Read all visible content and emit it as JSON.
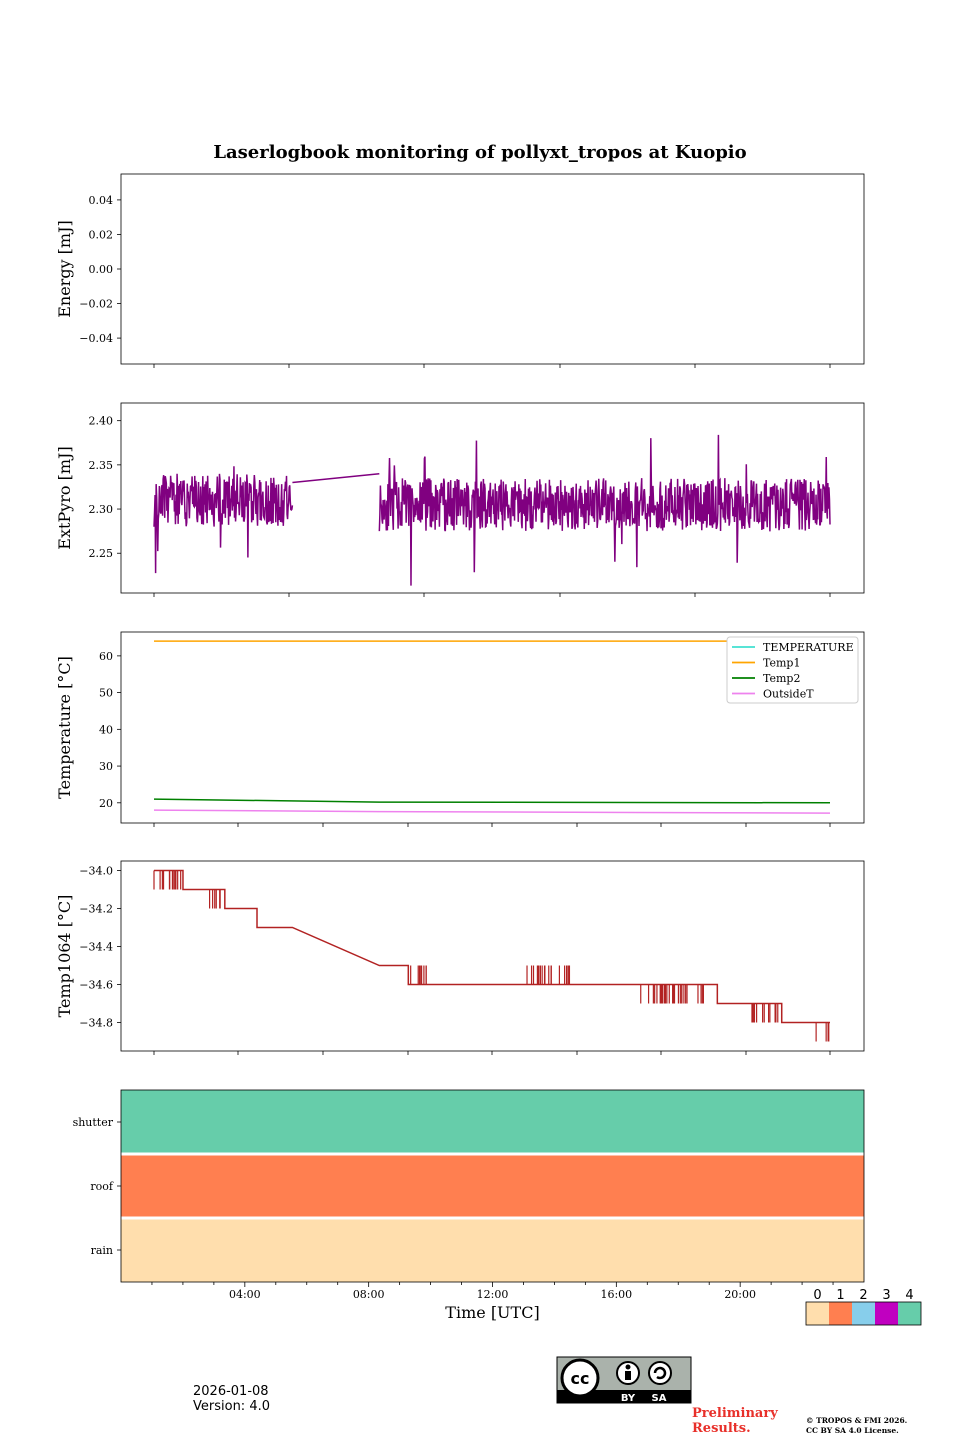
{
  "title": "Laserlogbook monitoring of pollyxt_tropos at Kuopio",
  "footer": {
    "date": "2026-01-08",
    "version": "Version: 4.0",
    "prelim_line1": "Preliminary",
    "prelim_line2": "Results.",
    "copyright_line1": "© TROPOS & FMI 2026.",
    "copyright_line2": "CC BY SA 4.0 License.",
    "cc_by": "BY",
    "cc_sa": "SA",
    "cc_main": "cc"
  },
  "chart_data": [
    {
      "id": "energy",
      "type": "line",
      "ylabel": "Energy [mJ]",
      "ylim": [
        -0.055,
        0.055
      ],
      "yticks": [
        0.04,
        0.02,
        0.0,
        -0.02,
        -0.04
      ],
      "ytick_labels": [
        "0.04",
        "0.02",
        "0.00",
        "−0.02",
        "−0.04"
      ],
      "series": []
    },
    {
      "id": "extpyro",
      "type": "line",
      "ylabel": "ExtPyro [mJ]",
      "ylim": [
        2.205,
        2.42
      ],
      "yticks": [
        2.4,
        2.35,
        2.3,
        2.25
      ],
      "ytick_labels": [
        "2.40",
        "2.35",
        "2.30",
        "2.25"
      ],
      "series": [
        {
          "name": "ExtPyro",
          "color": "#800080",
          "segments": [
            {
              "t_start": 1.0,
              "t_end": 5.3,
              "mean": 2.31,
              "amp": 0.03,
              "seed": 3
            },
            {
              "t_start": 5.3,
              "t_end": 8.0,
              "points": [
                [
                  5.3,
                  2.33
                ],
                [
                  8.0,
                  2.34
                ]
              ]
            },
            {
              "t_start": 8.0,
              "t_end": 22.0,
              "mean": 2.305,
              "amp": 0.03,
              "seed": 11
            }
          ]
        }
      ]
    },
    {
      "id": "temperature",
      "type": "line",
      "ylabel": "Temperature [°C]",
      "ylim": [
        14.5,
        66.5
      ],
      "yticks": [
        60,
        50,
        40,
        30,
        20
      ],
      "ytick_labels": [
        "60",
        "50",
        "40",
        "30",
        "20"
      ],
      "legend": [
        "TEMPERATURE",
        "Temp1",
        "Temp2",
        "OutsideT"
      ],
      "legend_colors": [
        "#40e0d0",
        "#ffa500",
        "#008000",
        "#ee82ee"
      ],
      "legend_position": "top-right",
      "series": [
        {
          "name": "Temp1",
          "color": "#ffa500",
          "points": [
            [
              1.0,
              64.0
            ],
            [
              22.0,
              64.0
            ]
          ]
        },
        {
          "name": "Temp2",
          "color": "#008000",
          "points": [
            [
              1.0,
              21.0
            ],
            [
              8.0,
              20.2
            ],
            [
              22.0,
              20.0
            ]
          ]
        },
        {
          "name": "OutsideT",
          "color": "#ee82ee",
          "points": [
            [
              1.0,
              18.0
            ],
            [
              8.0,
              17.6
            ],
            [
              22.0,
              17.2
            ]
          ]
        }
      ]
    },
    {
      "id": "temp1064",
      "type": "line",
      "ylabel": "Temp1064 [°C]",
      "ylim": [
        -34.95,
        -33.95
      ],
      "yticks": [
        -34.0,
        -34.2,
        -34.4,
        -34.6,
        -34.8
      ],
      "ytick_labels": [
        "−34.0",
        "−34.2",
        "−34.4",
        "−34.6",
        "−34.8"
      ],
      "series": [
        {
          "name": "Temp1064",
          "color": "#b22222",
          "points": [
            [
              1.0,
              -34.0
            ],
            [
              1.9,
              -34.0
            ],
            [
              1.9,
              -34.1
            ],
            [
              3.2,
              -34.1
            ],
            [
              3.2,
              -34.2
            ],
            [
              4.2,
              -34.2
            ],
            [
              4.2,
              -34.3
            ],
            [
              5.3,
              -34.3
            ],
            [
              8.0,
              -34.5
            ],
            [
              8.9,
              -34.5
            ],
            [
              8.9,
              -34.6
            ],
            [
              15.8,
              -34.6
            ],
            [
              15.8,
              -34.6
            ],
            [
              18.5,
              -34.6
            ],
            [
              18.5,
              -34.7
            ],
            [
              20.5,
              -34.7
            ],
            [
              20.5,
              -34.8
            ],
            [
              22.0,
              -34.8
            ]
          ],
          "flicker": [
            [
              1.0,
              1.9,
              -34.1
            ],
            [
              2.7,
              3.2,
              -34.2
            ],
            [
              8.9,
              9.5,
              -34.5
            ],
            [
              12.5,
              14.0,
              -34.5
            ],
            [
              16.0,
              18.2,
              -34.7
            ],
            [
              19.5,
              20.5,
              -34.8
            ],
            [
              21.5,
              22.0,
              -34.9
            ]
          ]
        }
      ]
    },
    {
      "id": "status",
      "type": "heatmap",
      "rows": [
        "shutter",
        "roof",
        "rain"
      ],
      "row_values": [
        4,
        1,
        0
      ],
      "xlabel": "Time [UTC]",
      "xticks": [
        "04:00",
        "08:00",
        "12:00",
        "16:00",
        "20:00"
      ],
      "xtick_hours": [
        4,
        8,
        12,
        16,
        20
      ],
      "xlim_hours": [
        0,
        24
      ],
      "colorbar": {
        "labels": [
          "0",
          "1",
          "2",
          "3",
          "4"
        ],
        "colors": [
          "#ffdead",
          "#ff7f50",
          "#87ceeb",
          "#c000c0",
          "#66cdaa"
        ]
      }
    }
  ],
  "shared_x_hours": [
    -1.15,
    24.0
  ]
}
